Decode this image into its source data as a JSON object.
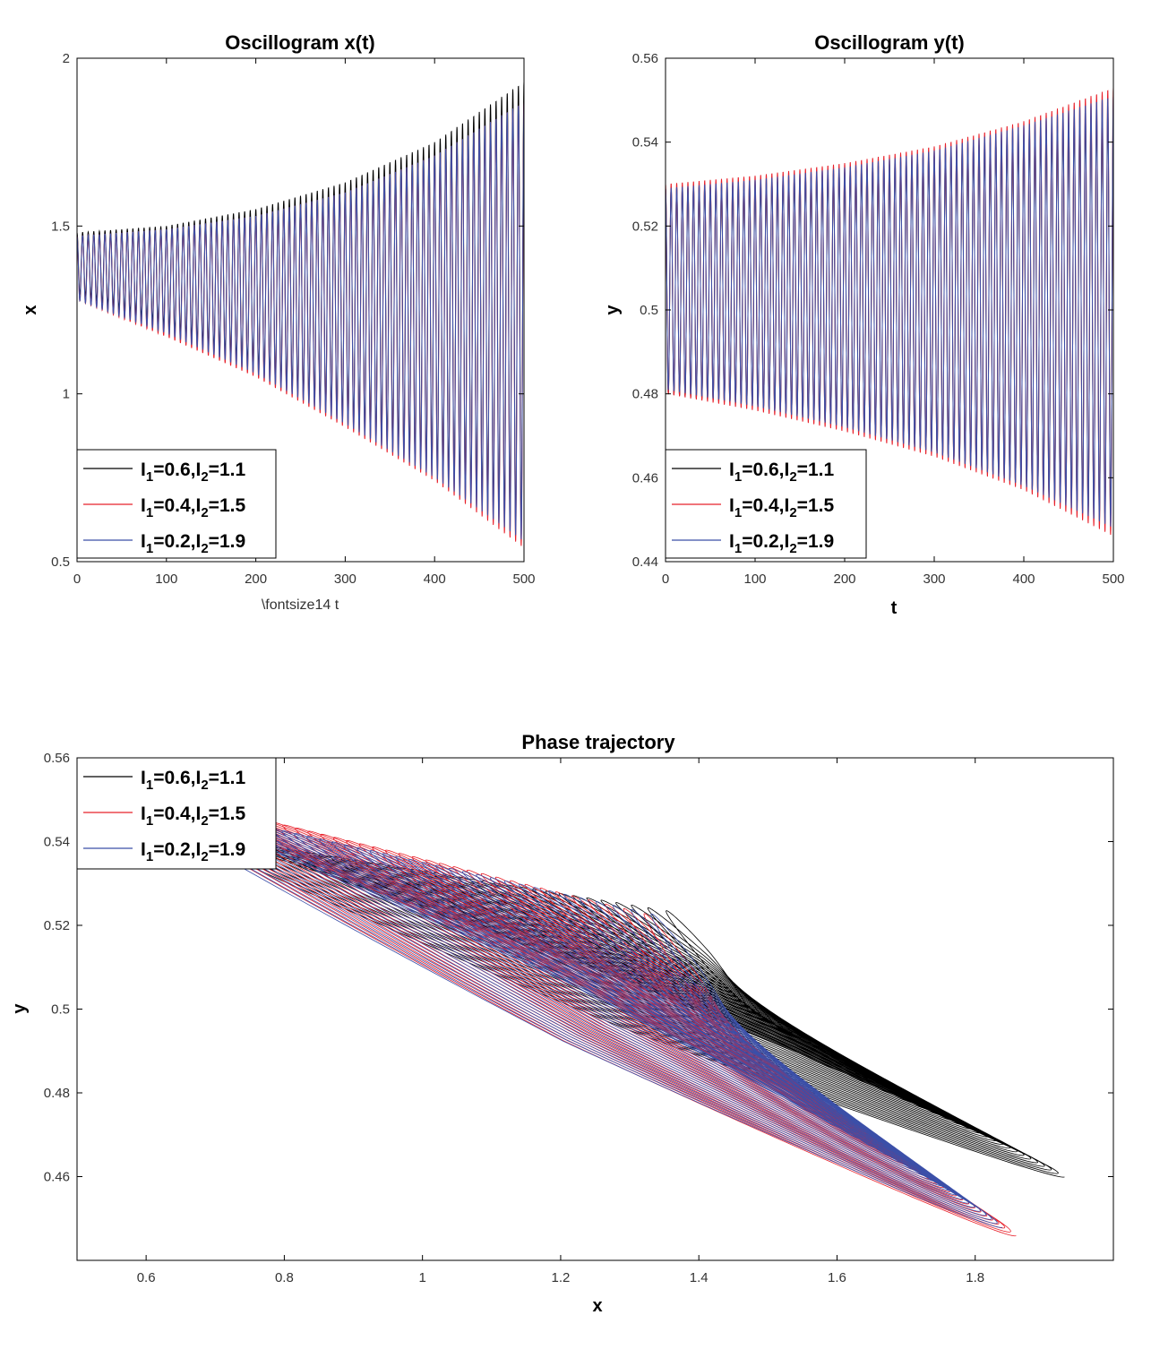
{
  "chart_data": [
    {
      "type": "line",
      "title": "Oscillogram x(t)",
      "xlabel": "\\fontsize14 t",
      "ylabel": "x",
      "xlim": [
        0,
        500
      ],
      "ylim": [
        0.5,
        2
      ],
      "xticks": [
        0,
        100,
        200,
        300,
        400,
        500
      ],
      "xtick_labels": [
        "0",
        "100",
        "200",
        "300",
        "400",
        "500"
      ],
      "yticks": [
        0.5,
        1,
        1.5,
        2
      ],
      "ytick_labels": [
        "0.5",
        "1",
        "1.5",
        "2"
      ],
      "grid": false,
      "legend_position": "bottom-left",
      "oscillation": {
        "cycles": 80,
        "t_start": 0,
        "t_end": 500
      },
      "series": [
        {
          "color": "#000000",
          "legend": {
            "a": "0.6",
            "b": "1.1"
          },
          "upper_envelope": {
            "t": [
              0,
              100,
              200,
              300,
              400,
              500
            ],
            "v": [
              1.48,
              1.5,
              1.55,
              1.63,
              1.75,
              1.93
            ]
          },
          "lower_envelope": {
            "t": [
              0,
              100,
              200,
              300,
              400,
              500
            ],
            "v": [
              1.3,
              1.2,
              1.08,
              0.93,
              0.78,
              0.6
            ]
          }
        },
        {
          "color": "#e8202a",
          "legend": {
            "a": "0.4",
            "b": "1.5"
          },
          "upper_envelope": {
            "t": [
              0,
              100,
              200,
              300,
              400,
              500
            ],
            "v": [
              1.47,
              1.49,
              1.53,
              1.6,
              1.71,
              1.87
            ]
          },
          "lower_envelope": {
            "t": [
              0,
              100,
              200,
              300,
              400,
              500
            ],
            "v": [
              1.28,
              1.17,
              1.05,
              0.9,
              0.74,
              0.54
            ]
          }
        },
        {
          "color": "#3b4fa8",
          "legend": {
            "a": "0.2",
            "b": "1.9"
          },
          "upper_envelope": {
            "t": [
              0,
              100,
              200,
              300,
              400,
              500
            ],
            "v": [
              1.47,
              1.49,
              1.53,
              1.6,
              1.71,
              1.87
            ]
          },
          "lower_envelope": {
            "t": [
              0,
              100,
              200,
              300,
              400,
              500
            ],
            "v": [
              1.28,
              1.18,
              1.06,
              0.91,
              0.75,
              0.56
            ]
          }
        }
      ]
    },
    {
      "type": "line",
      "title": "Oscillogram y(t)",
      "xlabel": "t",
      "ylabel": "y",
      "xlim": [
        0,
        500
      ],
      "ylim": [
        0.44,
        0.56
      ],
      "xticks": [
        0,
        100,
        200,
        300,
        400,
        500
      ],
      "xtick_labels": [
        "0",
        "100",
        "200",
        "300",
        "400",
        "500"
      ],
      "yticks": [
        0.44,
        0.46,
        0.48,
        0.5,
        0.52,
        0.54,
        0.56
      ],
      "ytick_labels": [
        "0.44",
        "0.46",
        "0.48",
        "0.5",
        "0.52",
        "0.54",
        "0.56"
      ],
      "grid": false,
      "legend_position": "bottom-left",
      "oscillation": {
        "cycles": 80,
        "t_start": 0,
        "t_end": 500
      },
      "series": [
        {
          "color": "#000000",
          "legend": {
            "a": "0.6",
            "b": "1.1"
          },
          "upper_envelope": {
            "t": [
              0,
              100,
              200,
              300,
              400,
              500
            ],
            "v": [
              0.529,
              0.53,
              0.533,
              0.537,
              0.542,
              0.548
            ]
          },
          "lower_envelope": {
            "t": [
              0,
              100,
              200,
              300,
              400,
              500
            ],
            "v": [
              0.48,
              0.477,
              0.472,
              0.466,
              0.458,
              0.45
            ]
          }
        },
        {
          "color": "#e8202a",
          "legend": {
            "a": "0.4",
            "b": "1.5"
          },
          "upper_envelope": {
            "t": [
              0,
              100,
              200,
              300,
              400,
              500
            ],
            "v": [
              0.53,
              0.532,
              0.535,
              0.539,
              0.545,
              0.553
            ]
          },
          "lower_envelope": {
            "t": [
              0,
              100,
              200,
              300,
              400,
              500
            ],
            "v": [
              0.48,
              0.476,
              0.471,
              0.465,
              0.457,
              0.446
            ]
          }
        },
        {
          "color": "#3b4fa8",
          "legend": {
            "a": "0.2",
            "b": "1.9"
          },
          "upper_envelope": {
            "t": [
              0,
              100,
              200,
              300,
              400,
              500
            ],
            "v": [
              0.529,
              0.531,
              0.534,
              0.538,
              0.544,
              0.551
            ]
          },
          "lower_envelope": {
            "t": [
              0,
              100,
              200,
              300,
              400,
              500
            ],
            "v": [
              0.481,
              0.477,
              0.472,
              0.466,
              0.458,
              0.448
            ]
          }
        }
      ]
    },
    {
      "type": "line",
      "title": "Phase trajectory",
      "xlabel": "x",
      "ylabel": "y",
      "xlim": [
        0.5,
        2
      ],
      "ylim": [
        0.44,
        0.56
      ],
      "xticks": [
        0.6,
        0.8,
        1,
        1.2,
        1.4,
        1.6,
        1.8
      ],
      "xtick_labels": [
        "0.6",
        "0.8",
        "1",
        "1.2",
        "1.4",
        "1.6",
        "1.8"
      ],
      "yticks": [
        0.46,
        0.48,
        0.5,
        0.52,
        0.54,
        0.56
      ],
      "ytick_labels": [
        "0.46",
        "0.48",
        "0.5",
        "0.52",
        "0.54",
        "0.56"
      ],
      "grid": false,
      "legend_position": "top-left",
      "loops": 40,
      "series": [
        {
          "color": "#000000",
          "legend": {
            "a": "0.6",
            "b": "1.1"
          },
          "first_loop": {
            "x_min": 1.37,
            "x_max": 1.47,
            "y_min": 0.5,
            "y_max": 0.523
          },
          "last_loop": {
            "x_min": 0.655,
            "x_max": 1.93,
            "y_min": 0.46,
            "y_max": 0.542
          }
        },
        {
          "color": "#e8202a",
          "legend": {
            "a": "0.4",
            "b": "1.5"
          },
          "first_loop": {
            "x_min": 1.34,
            "x_max": 1.46,
            "y_min": 0.49,
            "y_max": 0.522
          },
          "last_loop": {
            "x_min": 0.545,
            "x_max": 1.86,
            "y_min": 0.446,
            "y_max": 0.554
          }
        },
        {
          "color": "#3b4fa8",
          "legend": {
            "a": "0.2",
            "b": "1.9"
          },
          "first_loop": {
            "x_min": 1.35,
            "x_max": 1.46,
            "y_min": 0.493,
            "y_max": 0.522
          },
          "last_loop": {
            "x_min": 0.565,
            "x_max": 1.84,
            "y_min": 0.448,
            "y_max": 0.551
          }
        }
      ]
    }
  ]
}
